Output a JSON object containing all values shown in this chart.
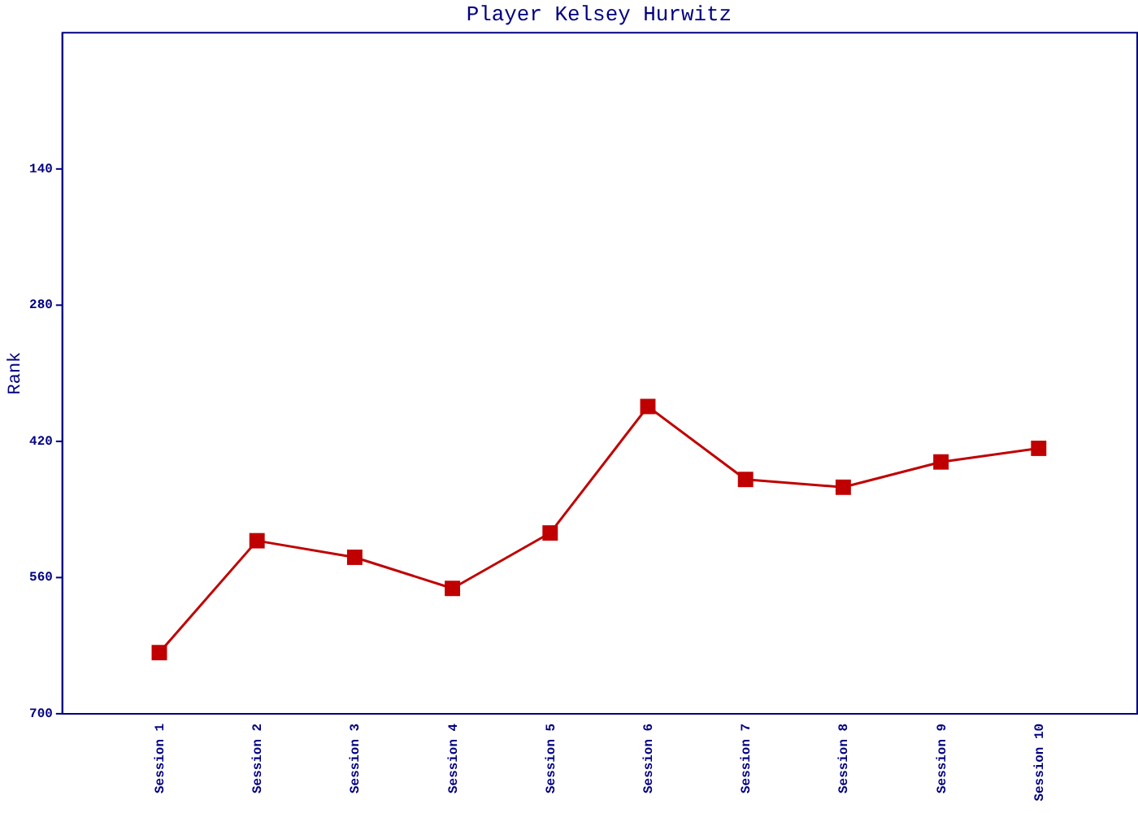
{
  "chart_data": {
    "type": "line",
    "title": "Player Kelsey Hurwitz",
    "ylabel": "Rank",
    "categories": [
      "Session 1",
      "Session 2",
      "Session 3",
      "Session 4",
      "Session 5",
      "Session 6",
      "Session 7",
      "Session 8",
      "Session 9",
      "Session 10"
    ],
    "series": [
      {
        "color": "#c00000",
        "values": [
          638,
          523,
          540,
          572,
          515,
          385,
          460,
          468,
          442,
          428
        ]
      }
    ],
    "ylim": [
      700,
      0
    ],
    "yticks": [
      140,
      280,
      420,
      560,
      700
    ],
    "grid": false,
    "marker": "square",
    "line_style": "solid"
  }
}
